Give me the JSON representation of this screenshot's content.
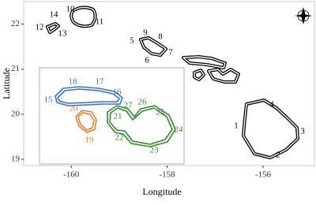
{
  "chart_data": {
    "type": "map",
    "x_label": "Longitude",
    "y_label": "Latitude",
    "xlim": [
      -160.99,
      -154.93
    ],
    "ylim": [
      18.86,
      22.5
    ],
    "xticks": [
      -160,
      -158,
      -156
    ],
    "yticks": [
      19,
      20,
      21,
      22
    ],
    "labels": [
      {
        "text": "1",
        "color": "#000000"
      },
      {
        "text": "2",
        "color": "#000000"
      },
      {
        "text": "3",
        "color": "#000000"
      },
      {
        "text": "4",
        "color": "#000000"
      },
      {
        "text": "5",
        "color": "#000000"
      },
      {
        "text": "6",
        "color": "#000000"
      },
      {
        "text": "7",
        "color": "#000000"
      },
      {
        "text": "8",
        "color": "#000000"
      },
      {
        "text": "9",
        "color": "#000000"
      },
      {
        "text": "10",
        "color": "#000000"
      },
      {
        "text": "11",
        "color": "#000000"
      },
      {
        "text": "12",
        "color": "#000000"
      },
      {
        "text": "13",
        "color": "#000000"
      },
      {
        "text": "14",
        "color": "#000000"
      },
      {
        "text": "15",
        "color": "#3a6fd8"
      },
      {
        "text": "16",
        "color": "#3a6fd8"
      },
      {
        "text": "17",
        "color": "#3a6fd8"
      },
      {
        "text": "18",
        "color": "#3a6fd8"
      },
      {
        "text": "19",
        "color": "#e8822a"
      },
      {
        "text": "20",
        "color": "#e8822a"
      },
      {
        "text": "21",
        "color": "#2e8b2e"
      },
      {
        "text": "22",
        "color": "#2e8b2e"
      },
      {
        "text": "23",
        "color": "#2e8b2e"
      },
      {
        "text": "24",
        "color": "#2e8b2e"
      },
      {
        "text": "25",
        "color": "#2e8b2e"
      },
      {
        "text": "26",
        "color": "#2e8b2e"
      },
      {
        "text": "27",
        "color": "#2e8b2e"
      }
    ]
  }
}
